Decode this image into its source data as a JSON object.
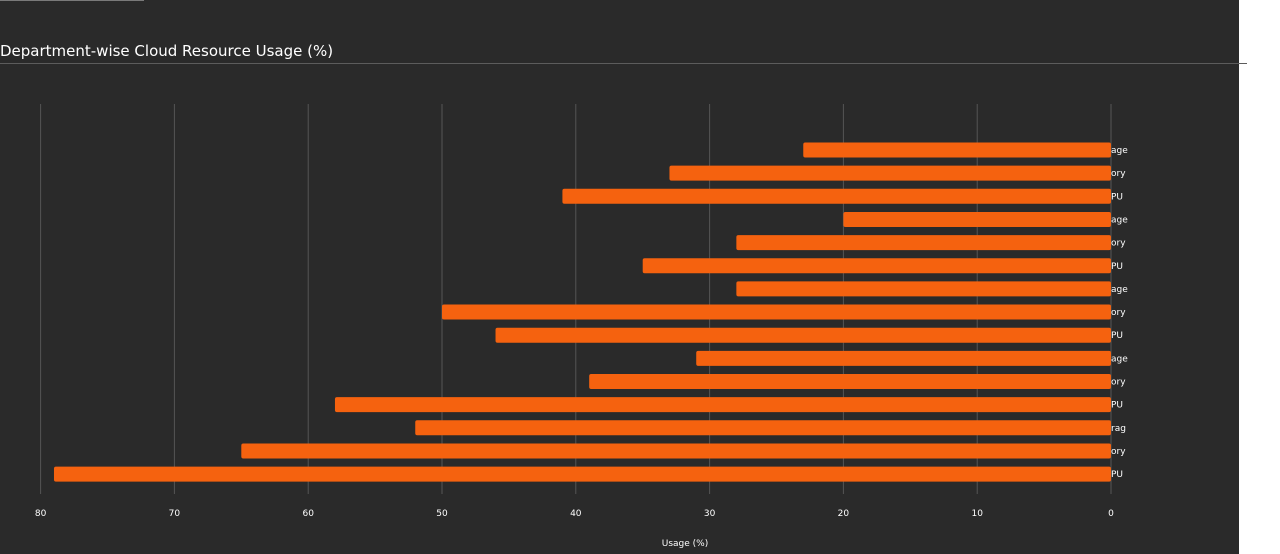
{
  "chart_data": {
    "type": "bar",
    "orientation": "horizontal",
    "title": "Department-wise Cloud Resource Usage (%)",
    "xlabel": "Usage (%)",
    "ylabel": "",
    "xlim": [
      80,
      0
    ],
    "x_axis_reversed": true,
    "x_ticks": [
      80,
      70,
      60,
      50,
      40,
      30,
      20,
      10,
      0
    ],
    "grid": true,
    "legend": "none",
    "bar_color": "#f5620f",
    "categories": [
      "age",
      "ory",
      "PU",
      "age",
      "ory",
      "PU",
      "age",
      "ory",
      "PU",
      "age",
      "ory",
      "PU",
      "rag",
      "ory",
      "PU"
    ],
    "values": [
      23,
      33,
      41,
      20,
      28,
      35,
      28,
      50,
      46,
      31,
      39,
      58,
      52,
      65,
      79
    ]
  }
}
